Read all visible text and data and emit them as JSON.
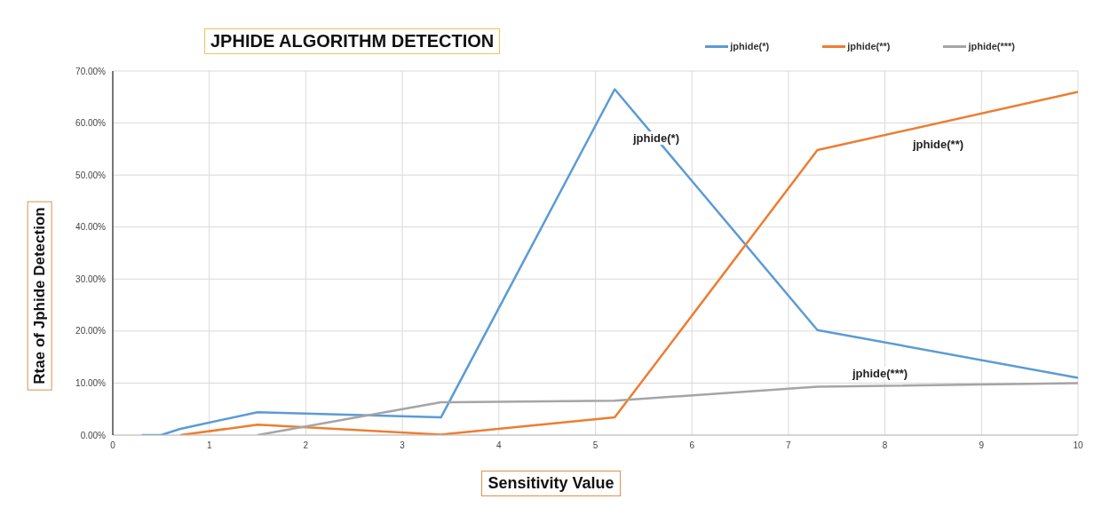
{
  "chart_data": {
    "type": "line",
    "title": "JPHIDE  ALGORITHM DETECTION",
    "xlabel": "Sensitivity Value",
    "ylabel": "Rtae of  Jphide Detection",
    "series": [
      {
        "name": "jphide(*)",
        "color": "#5b9bd5",
        "x": [
          0.3,
          0.5,
          0.7,
          1.5,
          3.4,
          5.2,
          7.3,
          10
        ],
        "values": [
          0,
          0,
          1.2,
          4.4,
          3.4,
          66.5,
          20.2,
          11
        ]
      },
      {
        "name": "jphide(**)",
        "color": "#ed7d31",
        "x": [
          0.7,
          1.5,
          3.4,
          5.2,
          7.3,
          10
        ],
        "values": [
          0,
          2,
          0.1,
          3.4,
          54.8,
          66
        ]
      },
      {
        "name": "jphide(***)",
        "color": "#a5a5a5",
        "x": [
          1.5,
          3.4,
          5.2,
          7.3,
          10
        ],
        "values": [
          0,
          6.3,
          6.6,
          9.3,
          10
        ]
      }
    ],
    "annotations": [
      "jphide(*)",
      "jphide(**)",
      "jphide(***)"
    ],
    "xlim": [
      0,
      10
    ],
    "xticks": [
      0,
      1,
      2,
      3,
      4,
      5,
      6,
      7,
      8,
      9,
      10
    ],
    "ylim": [
      0,
      70
    ],
    "yticks": [
      {
        "value": 0,
        "label": "0.00%"
      },
      {
        "value": 10,
        "label": "10.00%"
      },
      {
        "value": 20,
        "label": "20.00%"
      },
      {
        "value": 30,
        "label": "30.00%"
      },
      {
        "value": 40,
        "label": "40.00%"
      },
      {
        "value": 50,
        "label": "50.00%"
      },
      {
        "value": 60,
        "label": "60.00%"
      },
      {
        "value": 70,
        "label": "70.00%"
      }
    ],
    "grid": true,
    "legend": "top right",
    "marker": "none",
    "line_style": "solid"
  }
}
